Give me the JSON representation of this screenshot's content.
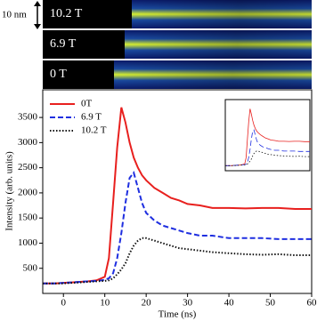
{
  "image_panels": {
    "scale_label": "10 nm",
    "labels": [
      "10.2 T",
      "6.9 T",
      "0 T"
    ]
  },
  "chart_data": {
    "type": "line",
    "x_label": "Time (ns)",
    "y_label": "Intensity (arb. units)",
    "x": [
      -5,
      -2,
      0,
      2,
      4,
      6,
      8,
      10,
      11,
      12,
      13,
      14,
      15,
      16,
      17,
      18,
      19,
      20,
      22,
      24,
      26,
      28,
      30,
      33,
      36,
      40,
      44,
      48,
      52,
      56,
      60
    ],
    "series": [
      {
        "name": "0T",
        "color": "#e8201e",
        "linestyle": "solid",
        "values": [
          200,
          200,
          210,
          220,
          230,
          240,
          260,
          330,
          700,
          1800,
          2900,
          3700,
          3400,
          3000,
          2700,
          2500,
          2350,
          2250,
          2100,
          2000,
          1900,
          1850,
          1780,
          1750,
          1700,
          1700,
          1690,
          1700,
          1700,
          1680,
          1680
        ]
      },
      {
        "name": "6.9 T",
        "color": "#1f2fe0",
        "linestyle": "dashed",
        "values": [
          200,
          200,
          210,
          220,
          230,
          240,
          250,
          270,
          300,
          400,
          700,
          1200,
          1800,
          2300,
          2400,
          2100,
          1800,
          1600,
          1450,
          1350,
          1300,
          1250,
          1200,
          1150,
          1150,
          1100,
          1100,
          1100,
          1080,
          1080,
          1080
        ]
      },
      {
        "name": "10.2 T",
        "color": "#111111",
        "linestyle": "dotted",
        "values": [
          200,
          200,
          200,
          210,
          220,
          230,
          240,
          250,
          260,
          300,
          380,
          480,
          600,
          800,
          950,
          1050,
          1100,
          1100,
          1050,
          1000,
          950,
          900,
          880,
          850,
          820,
          800,
          780,
          770,
          780,
          760,
          760
        ]
      }
    ],
    "xlim": [
      -5,
      60
    ],
    "xticks": [
      0,
      10,
      20,
      30,
      40,
      50,
      60
    ],
    "ylim": [
      0,
      4050
    ],
    "yticks": [
      500,
      1000,
      1500,
      2000,
      2500,
      3000,
      3500
    ],
    "legend": "upper left",
    "inset": true
  }
}
